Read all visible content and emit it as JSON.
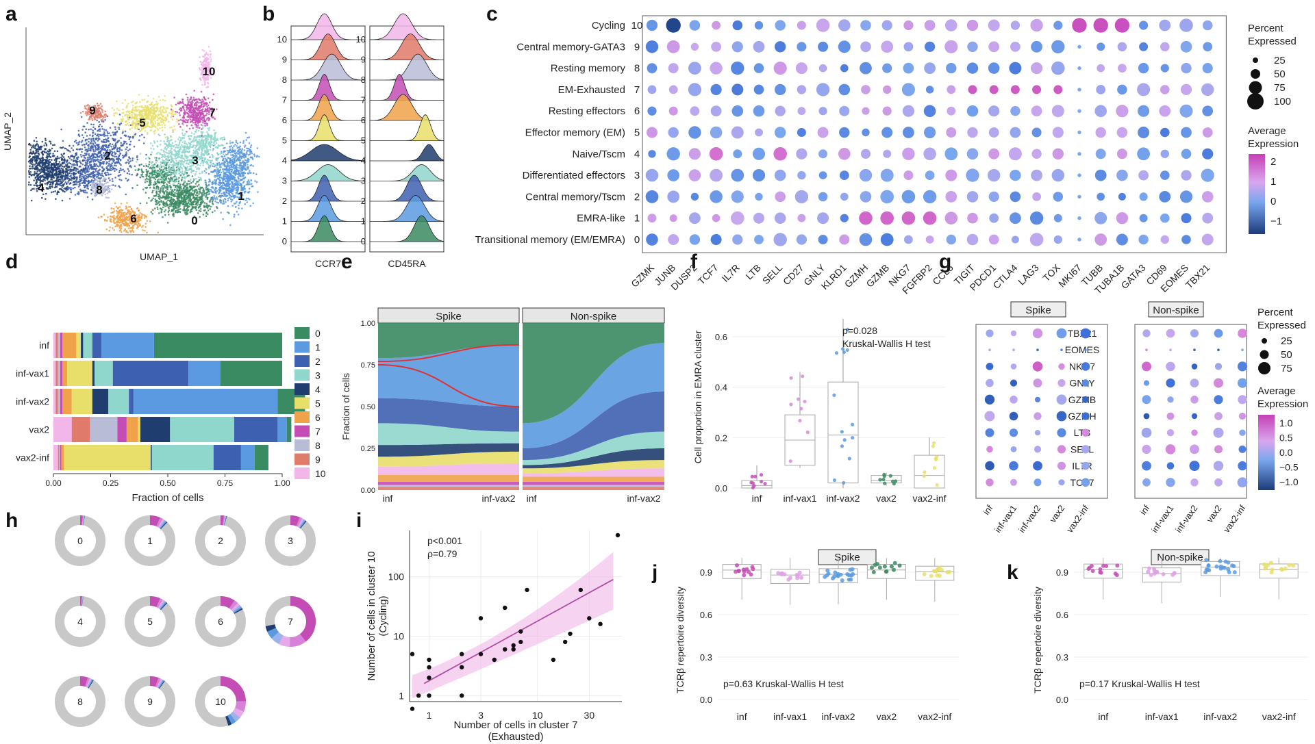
{
  "panel_letters": [
    "a",
    "b",
    "c",
    "d",
    "e",
    "f",
    "g",
    "h",
    "i",
    "j",
    "k"
  ],
  "chart_data": [
    {
      "panel": "a",
      "type": "scatter",
      "title": "",
      "xlabel": "UMAP_1",
      "ylabel": "UMAP_2",
      "cluster_labels": [
        "0",
        "1",
        "2",
        "3",
        "4",
        "5",
        "6",
        "7",
        "8",
        "9",
        "10"
      ],
      "cluster_colors": [
        "#3a8a62",
        "#5b9ae0",
        "#3e60b0",
        "#8fd6cc",
        "#1f3d6e",
        "#e8df6a",
        "#f0a24a",
        "#c44db5",
        "#b8bcd6",
        "#e07a6a",
        "#f2b6ea"
      ]
    },
    {
      "panel": "b",
      "type": "area",
      "title": "",
      "xlabels": [
        "CCR7",
        "CD45RA"
      ],
      "ylabels": [
        "0",
        "1",
        "2",
        "3",
        "4",
        "5",
        "6",
        "7",
        "8",
        "9",
        "10"
      ]
    },
    {
      "panel": "c",
      "type": "scatter",
      "title": "",
      "rows": [
        "Cycling",
        "Central memory-GATA3",
        "Resting memory",
        "EM-Exhausted",
        "Resting effectors",
        "Effector memory (EM)",
        "Naive/Tscm",
        "Differentiated effectors",
        "Central memory/Tscm",
        "EMRA-like",
        "Transitional memory (EM/EMRA)"
      ],
      "row_ids": [
        "10",
        "9",
        "8",
        "7",
        "6",
        "5",
        "4",
        "3",
        "2",
        "1",
        "0"
      ],
      "genes": [
        "GZMK",
        "JUNB",
        "DUSP2",
        "TCF7",
        "IL7R",
        "LTB",
        "SELL",
        "CD27",
        "GNLY",
        "KLRD1",
        "GZMH",
        "GZMB",
        "NKG7",
        "FGFBP2",
        "CCL5",
        "TIGIT",
        "PDCD1",
        "CTLA4",
        "LAG3",
        "TOX",
        "MKI67",
        "TUBB",
        "TUBA1B",
        "GATA3",
        "CD69",
        "EOMES",
        "TBX21"
      ],
      "legend_pct_title": "Percent\nExpressed",
      "legend_pct_values": [
        "25",
        "50",
        "75",
        "100"
      ],
      "legend_expr_title": "Average\nExpression",
      "legend_expr_ticks": [
        "2",
        "1",
        "0",
        "−1"
      ]
    },
    {
      "panel": "d",
      "type": "bar",
      "title": "",
      "categories": [
        "inf",
        "inf-vax1",
        "inf-vax2",
        "vax2",
        "vax2-inf"
      ],
      "xlabel": "Fraction of cells",
      "xticks": [
        "0.00",
        "0.25",
        "0.50",
        "0.75",
        "1.00"
      ],
      "legend": [
        "0",
        "1",
        "2",
        "3",
        "4",
        "5",
        "6",
        "7",
        "8",
        "9",
        "10"
      ],
      "series_order_left_to_right": [
        "10",
        "9",
        "8",
        "7",
        "6",
        "5",
        "4",
        "3",
        "2",
        "1",
        "0"
      ],
      "values": {
        "inf": [
          0.01,
          0.01,
          0.01,
          0.01,
          0.06,
          0.02,
          0.01,
          0.04,
          0.04,
          0.23,
          0.56
        ],
        "inf-vax1": [
          0.01,
          0.01,
          0.01,
          0.01,
          0.02,
          0.11,
          0.01,
          0.08,
          0.33,
          0.14,
          0.27
        ],
        "inf-vax2": [
          0.01,
          0.01,
          0.01,
          0.01,
          0.04,
          0.09,
          0.07,
          0.09,
          0.02,
          0.63,
          0.12
        ],
        "vax2": [
          0.08,
          0.08,
          0.12,
          0.04,
          0.05,
          0.01,
          0.13,
          0.28,
          0.19,
          0.04,
          0.02
        ],
        "vax2-inf": [
          0.02,
          0.005,
          0.005,
          0.005,
          0.01,
          0.38,
          0.005,
          0.27,
          0.12,
          0.06,
          0.06
        ]
      }
    },
    {
      "panel": "e",
      "type": "area",
      "title": "",
      "facets": [
        "Spike",
        "Non-spike"
      ],
      "ylabel": "Fraction of cells",
      "yticks": [
        "0.00",
        "0.25",
        "0.50",
        "0.75",
        "1.00"
      ],
      "xticks": [
        "inf",
        "inf-vax2"
      ]
    },
    {
      "panel": "f",
      "type": "scatter",
      "title": "",
      "ylabel": "Cell proportion in EMRA cluster",
      "categories": [
        "inf",
        "inf-vax1",
        "inf-vax2",
        "vax2",
        "vax2-inf"
      ],
      "yticks": [
        "0.0",
        "0.2",
        "0.4",
        "0.6"
      ],
      "ylim": [
        0,
        0.7
      ],
      "annotation": "p=0.028",
      "annotation2": "Kruskal-Wallis H test",
      "boxes": [
        {
          "q1": 0.0,
          "med": 0.01,
          "q3": 0.03,
          "lo": 0.0,
          "hi": 0.09
        },
        {
          "q1": 0.09,
          "med": 0.19,
          "q3": 0.29,
          "lo": 0.08,
          "hi": 0.46
        },
        {
          "q1": 0.02,
          "med": 0.21,
          "q3": 0.42,
          "lo": 0.0,
          "hi": 0.67
        },
        {
          "q1": 0.02,
          "med": 0.03,
          "q3": 0.05,
          "lo": 0.01,
          "hi": 0.06
        },
        {
          "q1": 0.0,
          "med": 0.05,
          "q3": 0.13,
          "lo": 0.0,
          "hi": 0.2
        }
      ]
    },
    {
      "panel": "g",
      "type": "scatter",
      "title": "",
      "facets": [
        "Spike",
        "Non-spike"
      ],
      "genes": [
        "TBX21",
        "EOMES",
        "NKG7",
        "GNLY",
        "GZMB",
        "GZMH",
        "LTB",
        "SELL",
        "IL7R",
        "TCF7"
      ],
      "categories": [
        "inf",
        "inf-vax1",
        "inf-vax2",
        "vax2",
        "vax2-inf"
      ],
      "legend_pct_title": "Percent\nExpressed",
      "legend_pct_values": [
        "25",
        "50",
        "75"
      ],
      "legend_expr_title": "Average\nExpression",
      "legend_expr_ticks": [
        "1.0",
        "0.5",
        "0.0",
        "−0.5",
        "−1.0"
      ]
    },
    {
      "panel": "h",
      "type": "pie",
      "title": "",
      "labels": [
        "0",
        "1",
        "2",
        "3",
        "4",
        "5",
        "6",
        "7",
        "8",
        "9",
        "10"
      ],
      "colored_fraction": [
        0.03,
        0.12,
        0.04,
        0.11,
        0.02,
        0.12,
        0.17,
        0.72,
        0.09,
        0.1,
        0.45
      ]
    },
    {
      "panel": "i",
      "type": "scatter",
      "title": "",
      "xlabel": "Number of cells in cluster 7",
      "xlabel2": "(Exhausted)",
      "ylabel": "Number of cells in cluster 10",
      "ylabel2": "(Cycling)",
      "xticks": [
        "1",
        "3",
        "10",
        "30"
      ],
      "yticks": [
        "1",
        "10",
        "100"
      ],
      "annotation": "p<0.001",
      "annotation2": "ρ=0.79",
      "points": [
        [
          0.7,
          0.6
        ],
        [
          0.8,
          1
        ],
        [
          1,
          1
        ],
        [
          1,
          2
        ],
        [
          1,
          4
        ],
        [
          1,
          3
        ],
        [
          2,
          1
        ],
        [
          2,
          3
        ],
        [
          2,
          5
        ],
        [
          3,
          20
        ],
        [
          3,
          5
        ],
        [
          4,
          4
        ],
        [
          6,
          7
        ],
        [
          5,
          6
        ],
        [
          6,
          6
        ],
        [
          7,
          12
        ],
        [
          7,
          8
        ],
        [
          5,
          30
        ],
        [
          8,
          60
        ],
        [
          14,
          4
        ],
        [
          18,
          8
        ],
        [
          20,
          11
        ],
        [
          25,
          60
        ],
        [
          30,
          20
        ],
        [
          38,
          16
        ],
        [
          55,
          500
        ],
        [
          0.7,
          5
        ]
      ]
    },
    {
      "panel": "j",
      "type": "scatter",
      "title": "Spike",
      "ylabel": "TCRβ repertoire diversity",
      "categories": [
        "inf",
        "inf-vax1",
        "inf-vax2",
        "vax2",
        "vax2-inf"
      ],
      "yticks": [
        "0.0",
        "0.3",
        "0.6",
        "0.9"
      ],
      "annotation": "p=0.63 Kruskal-Wallis H test"
    },
    {
      "panel": "k",
      "type": "scatter",
      "title": "Non-spike",
      "ylabel": "TCRβ repertoire diversity",
      "categories": [
        "inf",
        "inf-vax1",
        "inf-vax2",
        "vax2-inf"
      ],
      "yticks": [
        "0.0",
        "0.3",
        "0.6",
        "0.9"
      ],
      "annotation": "p=0.17 Kruskal-Wallis H test"
    }
  ]
}
